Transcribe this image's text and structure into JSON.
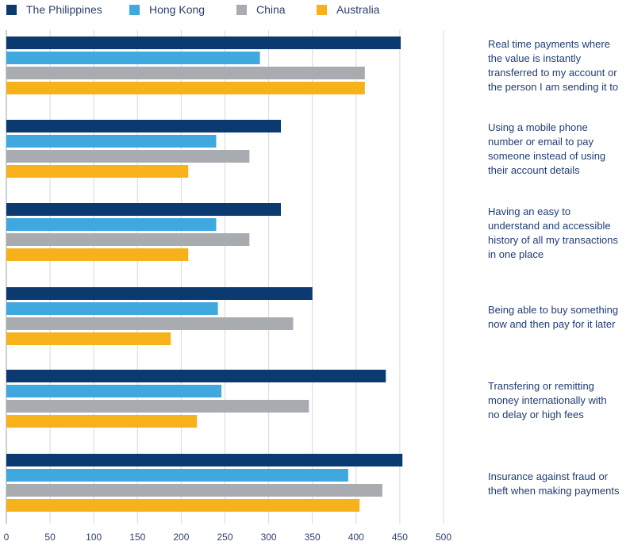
{
  "chart_data": {
    "type": "bar",
    "orientation": "horizontal",
    "categories": [
      "Real time payments where the value is instantly transferred to my account or the person I am sending it to",
      "Using a mobile phone number or email to pay someone instead of using their account details",
      "Having an easy to understand and accessible history of all my transactions in one place",
      "Being able to buy something now and then pay for it later",
      "Transfering or remitting money internationally with no delay or high fees",
      "Insurance against fraud or theft when making payments"
    ],
    "category_lines": [
      [
        "Real time payments where",
        "the value is instantly",
        "transferred to my account or",
        "the person I am sending it to"
      ],
      [
        "Using a mobile phone",
        "number or email to pay",
        "someone instead of using",
        "their account details"
      ],
      [
        "Having an easy to",
        "understand and accessible",
        "history of all my transactions",
        "in one place"
      ],
      [
        "Being able to buy something",
        "now and then pay for it later"
      ],
      [
        "Transfering or remitting",
        "money internationally with",
        "no delay or high fees"
      ],
      [
        "Insurance against fraud or",
        "theft when making payments"
      ]
    ],
    "series": [
      {
        "name": "The Philippines",
        "color": "#0b3a70",
        "values": [
          451,
          314,
          314,
          350,
          434,
          453
        ]
      },
      {
        "name": "Hong Kong",
        "color": "#3ea8df",
        "values": [
          290,
          240,
          240,
          242,
          246,
          391
        ]
      },
      {
        "name": "China",
        "color": "#a8abb0",
        "values": [
          410,
          278,
          278,
          328,
          346,
          430
        ]
      },
      {
        "name": "Australia",
        "color": "#f7b21b",
        "values": [
          410,
          208,
          208,
          188,
          218,
          404
        ]
      }
    ],
    "xlim": [
      0,
      500
    ],
    "xticks": [
      "0",
      "50",
      "100",
      "150",
      "200",
      "250",
      "300",
      "350",
      "400",
      "450",
      "500"
    ],
    "xlabel": "",
    "ylabel": "",
    "grid": true,
    "legend_position": "top-left"
  }
}
